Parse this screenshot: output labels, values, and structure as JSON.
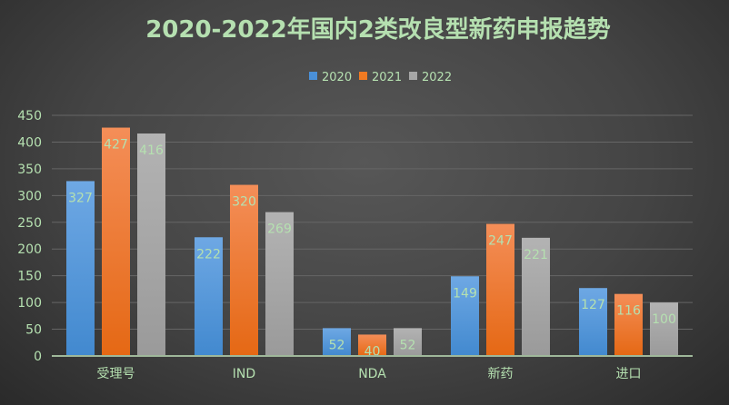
{
  "chart_data": {
    "type": "bar",
    "title": "2020-2022年国内2类改良型新药申报趋势",
    "categories": [
      "受理号",
      "IND",
      "NDA",
      "新药",
      "进口"
    ],
    "series": [
      {
        "name": "2020",
        "values": [
          327,
          222,
          52,
          149,
          127
        ],
        "color": "#4a90d9"
      },
      {
        "name": "2021",
        "values": [
          427,
          320,
          40,
          247,
          116
        ],
        "color": "#f07a22"
      },
      {
        "name": "2022",
        "values": [
          416,
          269,
          52,
          221,
          100
        ],
        "color": "#a6a6a6"
      }
    ],
    "yticks": [
      0,
      50,
      100,
      150,
      200,
      250,
      300,
      350,
      400,
      450
    ],
    "ylim": [
      0,
      450
    ],
    "xlabel": "",
    "ylabel": "",
    "grid": true,
    "legend": "top-center",
    "data_labels": true
  }
}
